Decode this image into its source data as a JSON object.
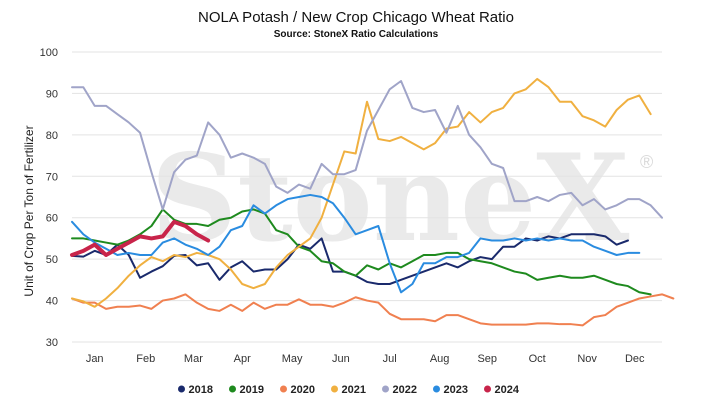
{
  "chart_data": {
    "type": "line",
    "title": "NOLA Potash / New Crop Chicago Wheat Ratio",
    "subtitle": "Source: StoneX Ratio Calculations",
    "ylabel": "Unit of Crop Per Ton of Fertilizer",
    "xlabel": "",
    "watermark": "StoneX",
    "watermark_mark": "®",
    "ylim": [
      30,
      100
    ],
    "yticks": [
      30,
      40,
      50,
      60,
      70,
      80,
      90,
      100
    ],
    "xlim": [
      0,
      52
    ],
    "xticks": [
      {
        "label": "Jan",
        "x": 2
      },
      {
        "label": "Feb",
        "x": 6.5
      },
      {
        "label": "Mar",
        "x": 10.7
      },
      {
        "label": "Apr",
        "x": 15
      },
      {
        "label": "May",
        "x": 19.4
      },
      {
        "label": "Jun",
        "x": 23.7
      },
      {
        "label": "Jul",
        "x": 28
      },
      {
        "label": "Aug",
        "x": 32.4
      },
      {
        "label": "Sep",
        "x": 36.6
      },
      {
        "label": "Oct",
        "x": 41
      },
      {
        "label": "Nov",
        "x": 45.4
      },
      {
        "label": "Dec",
        "x": 49.6
      }
    ],
    "grid": true,
    "legend_position": "bottom",
    "series": [
      {
        "name": "2018",
        "color": "#1a2a6c",
        "width": 2,
        "y": [
          50.8,
          50.6,
          52,
          51,
          53.5,
          51,
          45.5,
          47,
          48.3,
          50.8,
          51,
          48.5,
          49,
          45,
          48,
          49.5,
          47,
          47.5,
          47.5,
          50,
          53.5,
          52.5,
          55,
          47,
          47,
          46,
          44.5,
          44,
          44,
          45,
          46,
          47,
          48,
          49,
          48,
          49.5,
          50.5,
          50,
          53,
          53,
          55,
          54.5,
          55.5,
          55,
          56,
          56,
          56,
          55.5,
          53.5,
          54.5
        ]
      },
      {
        "name": "2019",
        "color": "#1e8a1e",
        "width": 2,
        "y": [
          55,
          55,
          54.5,
          54,
          53.5,
          54.5,
          56,
          58,
          62,
          59.5,
          58.5,
          58.5,
          58,
          59.5,
          60,
          61.5,
          62,
          61,
          57,
          56,
          53,
          52,
          49.5,
          49,
          47,
          46,
          48.5,
          47.5,
          49,
          48,
          49.5,
          51,
          51,
          51.5,
          51.5,
          50,
          49.5,
          49,
          48,
          47,
          46.5,
          45,
          45.5,
          46,
          45.5,
          45.5,
          46,
          45,
          44,
          43.5,
          42,
          41.5
        ]
      },
      {
        "name": "2020",
        "color": "#f08050",
        "width": 2,
        "y": [
          40.5,
          39.5,
          39.5,
          38,
          38.5,
          38.5,
          38.8,
          38,
          40,
          40.5,
          41.5,
          39.5,
          38,
          37.5,
          39,
          37.5,
          39.5,
          38,
          39,
          39,
          40.3,
          39,
          39,
          38.5,
          39.5,
          40.8,
          40,
          39.5,
          36.8,
          35.5,
          35.5,
          35.5,
          35,
          36.5,
          36.5,
          35.5,
          34.5,
          34.2,
          34.2,
          34.2,
          34.2,
          34.5,
          34.5,
          34.3,
          34.3,
          34,
          36,
          36.5,
          38.5,
          39.5,
          40.5,
          41,
          41.5,
          40.5
        ]
      },
      {
        "name": "2021",
        "color": "#f0b040",
        "width": 2,
        "y": [
          40.5,
          39.8,
          38.5,
          40.5,
          43,
          46,
          48.5,
          50.5,
          49.5,
          51,
          50.5,
          51.5,
          51,
          50,
          47.5,
          44,
          43,
          44,
          48,
          51,
          53,
          55,
          60,
          68,
          76,
          75.5,
          88,
          79,
          78.5,
          79.5,
          78,
          76.5,
          78,
          81.5,
          82,
          85.5,
          83,
          85.5,
          86.5,
          90,
          91,
          93.5,
          91.5,
          88,
          88,
          84.5,
          83.5,
          82,
          86,
          88.5,
          89.5,
          85
        ]
      },
      {
        "name": "2022",
        "color": "#a0a4c8",
        "width": 2,
        "y": [
          91.5,
          91.5,
          87,
          87,
          85,
          83,
          80.5,
          71,
          62,
          71,
          74,
          75,
          83,
          80,
          74.5,
          75.5,
          74.5,
          73,
          67.5,
          66,
          68,
          67,
          73,
          70.5,
          70.5,
          71.5,
          81,
          86,
          91,
          93,
          86.5,
          85.5,
          86,
          80.5,
          87,
          80,
          77,
          73,
          72,
          64,
          64,
          65,
          64,
          65.5,
          66,
          63,
          64.5,
          62,
          63,
          64.5,
          64.5,
          63,
          60
        ]
      },
      {
        "name": "2023",
        "color": "#2a8ce0",
        "width": 2,
        "y": [
          59,
          56,
          54,
          52.5,
          51,
          51.5,
          51,
          51,
          54,
          55,
          53.5,
          52.5,
          51,
          53,
          57,
          58,
          63,
          61,
          63,
          64.5,
          65,
          65.5,
          65,
          63.5,
          60,
          56,
          57,
          58,
          49,
          42,
          44,
          49,
          49,
          50.5,
          50.5,
          51.5,
          55,
          54.5,
          54.5,
          55,
          54.5,
          55,
          54.5,
          55,
          54.5,
          54.5,
          53,
          52,
          51,
          51.5,
          51.5
        ]
      },
      {
        "name": "2024",
        "color": "#c8244a",
        "width": 4,
        "y": [
          51,
          52,
          53.5,
          51,
          52.5,
          54,
          55.5,
          55,
          55.5,
          59,
          58,
          56,
          54.5
        ]
      }
    ]
  }
}
